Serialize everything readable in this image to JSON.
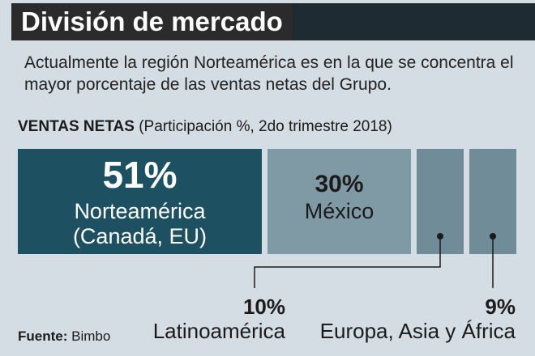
{
  "header": {
    "title": "División de mercado",
    "subtitle": "Actualmente la región Norteamérica es en la que se concentra el mayor porcentaje de las ventas netas del Grupo."
  },
  "chart_title": {
    "bold": "VENTAS NETAS",
    "rest": " (Participación %, 2do trimestre 2018)"
  },
  "source": {
    "label": "Fuente:",
    "value": " Bimbo"
  },
  "colors": {
    "primary": "#1d5061",
    "secondary": "#7f9aa5",
    "tertiary": "#6f8c98",
    "background": "#d4dde4"
  },
  "chart_data": {
    "type": "bar",
    "title": "VENTAS NETAS",
    "subtitle": "(Participación %, 2do trimestre 2018)",
    "categories": [
      "Norteamérica (Canadá, EU)",
      "México",
      "Latinoamérica",
      "Europa, Asia y África"
    ],
    "values": [
      51,
      30,
      10,
      9
    ],
    "labels": [
      {
        "pct": "51%",
        "line1": "Norteamérica",
        "line2": "(Canadá, EU)"
      },
      {
        "pct": "30%",
        "line1": "México",
        "line2": ""
      },
      {
        "pct": "10%",
        "line1": "Latinoamérica",
        "line2": ""
      },
      {
        "pct": "9%",
        "line1": "Europa, Asia y África",
        "line2": ""
      }
    ],
    "unit": "%"
  }
}
